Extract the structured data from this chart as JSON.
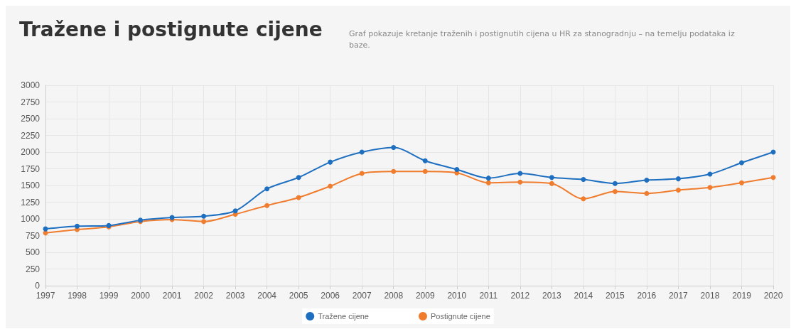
{
  "chart_data": {
    "type": "line",
    "title": "Tražene i postignute cijene",
    "subtitle": "Graf pokazuje kretanje traženih i postignutih cijena u HR za stanogradnju – na temelju podataka iz baze.",
    "categories": [
      "1997",
      "1998",
      "1999",
      "2000",
      "2001",
      "2002",
      "2003",
      "2004",
      "2005",
      "2006",
      "2007",
      "2008",
      "2009",
      "2010",
      "2011",
      "2012",
      "2013",
      "2014",
      "2015",
      "2016",
      "2017",
      "2018",
      "2019",
      "2020"
    ],
    "series": [
      {
        "name": "Tražene cijene",
        "color": "#1f6fc1",
        "values": [
          850,
          890,
          900,
          980,
          1020,
          1040,
          1120,
          1450,
          1620,
          1850,
          2000,
          2070,
          1870,
          1740,
          1610,
          1680,
          1620,
          1590,
          1530,
          1580,
          1600,
          1670,
          1840,
          2000
        ]
      },
      {
        "name": "Postignute cijene",
        "color": "#f07c2e",
        "values": [
          790,
          840,
          880,
          960,
          990,
          960,
          1070,
          1200,
          1320,
          1490,
          1680,
          1710,
          1710,
          1690,
          1540,
          1550,
          1530,
          1300,
          1410,
          1380,
          1430,
          1470,
          1540,
          1620
        ]
      }
    ],
    "ylim": [
      0,
      3000
    ],
    "yticks": [
      0,
      250,
      500,
      750,
      1000,
      1250,
      1500,
      1750,
      2000,
      2250,
      2500,
      2750,
      3000
    ],
    "grid": true,
    "legend": "bottom",
    "marker": "circle",
    "line_style": "solid"
  }
}
